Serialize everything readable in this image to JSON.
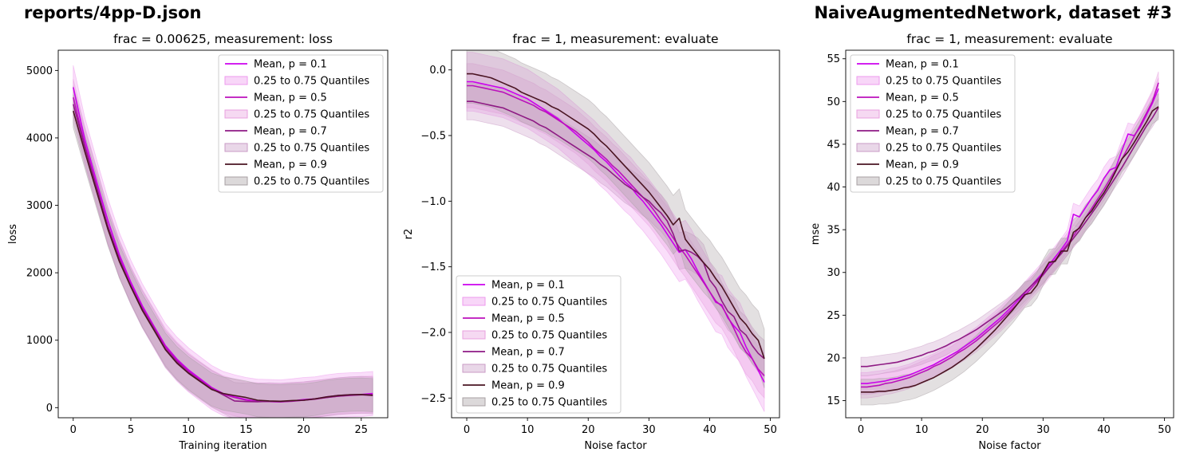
{
  "figure": {
    "left_header": "reports/4pp-D.json",
    "right_header": "NaiveAugmentedNetwork, dataset #3"
  },
  "series_styles": [
    {
      "p": "0.1",
      "line_color": "#cc00ee",
      "fill_color": "#ee99ee"
    },
    {
      "p": "0.5",
      "line_color": "#bb11bb",
      "fill_color": "#e8a0df"
    },
    {
      "p": "0.7",
      "line_color": "#8e1a84",
      "fill_color": "#c99bc6"
    },
    {
      "p": "0.9",
      "line_color": "#4a1422",
      "fill_color": "#a7a0a3"
    }
  ],
  "chart_data": [
    {
      "type": "line",
      "title": "frac = 0.00625, measurement: loss",
      "xlabel": "Training iteration",
      "ylabel": "loss",
      "xlim": [
        -1.3,
        27.3
      ],
      "ylim": [
        -150,
        5300
      ],
      "xticks": [
        0,
        5,
        10,
        15,
        20,
        25
      ],
      "yticks": [
        0,
        1000,
        2000,
        3000,
        4000,
        5000
      ],
      "legend_position": "upper right",
      "legend": [
        "Mean, p = 0.1",
        "0.25 to 0.75 Quantiles",
        "Mean, p = 0.5",
        "0.25 to 0.75 Quantiles",
        "Mean, p = 0.7",
        "0.25 to 0.75 Quantiles",
        "Mean, p = 0.9",
        "0.25 to 0.75 Quantiles"
      ],
      "x": [
        0,
        1,
        2,
        3,
        4,
        5,
        6,
        7,
        8,
        9,
        10,
        11,
        12,
        13,
        14,
        15,
        16,
        17,
        18,
        19,
        20,
        21,
        22,
        23,
        24,
        25,
        26
      ],
      "series": [
        {
          "name": "Mean, p = 0.1",
          "band_halfwidth": 0.06,
          "values": [
            4750,
            3980,
            3370,
            2780,
            2270,
            1860,
            1510,
            1210,
            920,
            720,
            560,
            430,
            300,
            210,
            160,
            120,
            95,
            90,
            85,
            100,
            120,
            130,
            160,
            180,
            190,
            195,
            210
          ]
        },
        {
          "name": "Mean, p = 0.5",
          "band_halfwidth": 0.05,
          "values": [
            4600,
            3900,
            3300,
            2700,
            2220,
            1820,
            1480,
            1190,
            900,
            700,
            540,
            410,
            290,
            200,
            150,
            110,
            95,
            90,
            85,
            95,
            110,
            125,
            150,
            170,
            180,
            190,
            195
          ]
        },
        {
          "name": "Mean, p = 0.7",
          "band_halfwidth": 0.05,
          "values": [
            4500,
            3870,
            3280,
            2690,
            2200,
            1800,
            1460,
            1170,
            870,
            680,
            520,
            400,
            280,
            190,
            100,
            90,
            88,
            95,
            90,
            100,
            110,
            130,
            150,
            170,
            185,
            190,
            180
          ]
        },
        {
          "name": "Mean, p = 0.9",
          "band_halfwidth": 0.045,
          "values": [
            4400,
            3800,
            3220,
            2650,
            2170,
            1790,
            1440,
            1150,
            860,
            660,
            510,
            390,
            270,
            210,
            180,
            150,
            110,
            100,
            95,
            105,
            110,
            130,
            160,
            180,
            190,
            195,
            185
          ]
        }
      ]
    },
    {
      "type": "line",
      "title": "frac = 1, measurement: evaluate",
      "xlabel": "Noise factor",
      "ylabel": "r2",
      "xlim": [
        -2.5,
        51.5
      ],
      "ylim": [
        -2.65,
        0.15
      ],
      "xticks": [
        0,
        10,
        20,
        30,
        40,
        50
      ],
      "yticks": [
        0.0,
        -0.5,
        -1.0,
        -1.5,
        -2.0,
        -2.5
      ],
      "ytick_labels": [
        "0.0",
        "−0.5",
        "−1.0",
        "−1.5",
        "−2.0",
        "−2.5"
      ],
      "legend_position": "lower left",
      "legend": [
        "Mean, p = 0.1",
        "0.25 to 0.75 Quantiles",
        "Mean, p = 0.5",
        "0.25 to 0.75 Quantiles",
        "Mean, p = 0.7",
        "0.25 to 0.75 Quantiles",
        "Mean, p = 0.9",
        "0.25 to 0.75 Quantiles"
      ],
      "x": [
        0,
        1,
        2,
        3,
        4,
        5,
        6,
        7,
        8,
        9,
        10,
        11,
        12,
        13,
        14,
        15,
        16,
        17,
        18,
        19,
        20,
        21,
        22,
        23,
        24,
        25,
        26,
        27,
        28,
        29,
        30,
        31,
        32,
        33,
        34,
        35,
        36,
        37,
        38,
        39,
        40,
        41,
        42,
        43,
        44,
        45,
        46,
        47,
        48,
        49
      ],
      "series": [
        {
          "name": "Mean, p = 0.1",
          "band_halfwidth": 0.08,
          "values": [
            -0.09,
            -0.09,
            -0.1,
            -0.11,
            -0.12,
            -0.13,
            -0.14,
            -0.16,
            -0.18,
            -0.2,
            -0.22,
            -0.25,
            -0.28,
            -0.31,
            -0.34,
            -0.37,
            -0.41,
            -0.45,
            -0.49,
            -0.53,
            -0.57,
            -0.61,
            -0.66,
            -0.7,
            -0.75,
            -0.8,
            -0.85,
            -0.89,
            -0.95,
            -1.0,
            -1.06,
            -1.12,
            -1.18,
            -1.25,
            -1.32,
            -1.39,
            -1.37,
            -1.44,
            -1.53,
            -1.61,
            -1.69,
            -1.77,
            -1.79,
            -1.89,
            -1.95,
            -2.0,
            -2.11,
            -2.2,
            -2.29,
            -2.38
          ]
        },
        {
          "name": "Mean, p = 0.5",
          "band_halfwidth": 0.06,
          "values": [
            -0.12,
            -0.12,
            -0.13,
            -0.14,
            -0.15,
            -0.16,
            -0.17,
            -0.19,
            -0.21,
            -0.23,
            -0.25,
            -0.27,
            -0.3,
            -0.32,
            -0.35,
            -0.38,
            -0.41,
            -0.44,
            -0.47,
            -0.51,
            -0.55,
            -0.6,
            -0.64,
            -0.68,
            -0.73,
            -0.77,
            -0.82,
            -0.87,
            -0.92,
            -0.97,
            -1.02,
            -1.08,
            -1.15,
            -1.21,
            -1.28,
            -1.35,
            -1.41,
            -1.48,
            -1.55,
            -1.62,
            -1.69,
            -1.76,
            -1.8,
            -1.88,
            -1.97,
            -2.07,
            -2.15,
            -2.2,
            -2.28,
            -2.33
          ]
        },
        {
          "name": "Mean, p = 0.7",
          "band_halfwidth": 0.05,
          "values": [
            -0.24,
            -0.24,
            -0.25,
            -0.26,
            -0.27,
            -0.28,
            -0.29,
            -0.31,
            -0.33,
            -0.35,
            -0.37,
            -0.39,
            -0.42,
            -0.44,
            -0.47,
            -0.5,
            -0.53,
            -0.56,
            -0.59,
            -0.62,
            -0.65,
            -0.68,
            -0.72,
            -0.75,
            -0.79,
            -0.83,
            -0.87,
            -0.9,
            -0.93,
            -0.97,
            -1.0,
            -1.05,
            -1.09,
            -1.15,
            -1.25,
            -1.38,
            -1.37,
            -1.39,
            -1.42,
            -1.47,
            -1.6,
            -1.66,
            -1.76,
            -1.84,
            -1.88,
            -1.98,
            -2.02,
            -2.1,
            -2.16,
            -2.2
          ]
        },
        {
          "name": "Mean, p = 0.9",
          "band_halfwidth": 0.08,
          "values": [
            -0.03,
            -0.03,
            -0.04,
            -0.05,
            -0.06,
            -0.08,
            -0.1,
            -0.12,
            -0.14,
            -0.17,
            -0.19,
            -0.21,
            -0.23,
            -0.25,
            -0.28,
            -0.3,
            -0.33,
            -0.36,
            -0.39,
            -0.42,
            -0.45,
            -0.49,
            -0.54,
            -0.58,
            -0.63,
            -0.68,
            -0.73,
            -0.78,
            -0.83,
            -0.88,
            -0.93,
            -0.99,
            -1.05,
            -1.11,
            -1.18,
            -1.13,
            -1.29,
            -1.35,
            -1.41,
            -1.47,
            -1.52,
            -1.59,
            -1.65,
            -1.73,
            -1.81,
            -1.89,
            -1.94,
            -2.01,
            -2.06,
            -2.2
          ]
        }
      ]
    },
    {
      "type": "line",
      "title": "frac = 1, measurement: evaluate",
      "xlabel": "Noise factor",
      "ylabel": "mse",
      "xlim": [
        -2.5,
        51.5
      ],
      "ylim": [
        13,
        56
      ],
      "xticks": [
        0,
        10,
        20,
        30,
        40,
        50
      ],
      "yticks": [
        15,
        20,
        25,
        30,
        35,
        40,
        45,
        50,
        55
      ],
      "legend_position": "upper left",
      "legend": [
        "Mean, p = 0.1",
        "0.25 to 0.75 Quantiles",
        "Mean, p = 0.5",
        "0.25 to 0.75 Quantiles",
        "Mean, p = 0.7",
        "0.25 to 0.75 Quantiles",
        "Mean, p = 0.9",
        "0.25 to 0.75 Quantiles"
      ],
      "x": [
        0,
        1,
        2,
        3,
        4,
        5,
        6,
        7,
        8,
        9,
        10,
        11,
        12,
        13,
        14,
        15,
        16,
        17,
        18,
        19,
        20,
        21,
        22,
        23,
        24,
        25,
        26,
        27,
        28,
        29,
        30,
        31,
        32,
        33,
        34,
        35,
        36,
        37,
        38,
        39,
        40,
        41,
        42,
        43,
        44,
        45,
        46,
        47,
        48,
        49
      ],
      "series": [
        {
          "name": "Mean, p = 0.1",
          "band_halfwidth": 0.03,
          "values": [
            17.0,
            17.0,
            17.1,
            17.2,
            17.3,
            17.5,
            17.6,
            17.8,
            18.0,
            18.3,
            18.6,
            18.9,
            19.2,
            19.6,
            20.0,
            20.4,
            20.8,
            21.3,
            21.8,
            22.3,
            22.9,
            23.5,
            24.1,
            24.7,
            25.4,
            26.1,
            26.8,
            27.6,
            28.4,
            29.2,
            30.0,
            30.9,
            31.8,
            32.7,
            33.7,
            36.8,
            36.5,
            37.6,
            38.7,
            39.6,
            41.0,
            42.0,
            42.3,
            44.3,
            46.2,
            46.0,
            47.0,
            48.4,
            49.8,
            51.5
          ]
        },
        {
          "name": "Mean, p = 0.5",
          "band_halfwidth": 0.03,
          "values": [
            16.6,
            16.6,
            16.7,
            16.8,
            17.0,
            17.1,
            17.3,
            17.5,
            17.7,
            18.0,
            18.3,
            18.6,
            19.0,
            19.3,
            19.7,
            20.1,
            20.6,
            21.0,
            21.5,
            22.0,
            22.6,
            23.2,
            23.8,
            24.4,
            25.1,
            25.8,
            26.5,
            27.3,
            28.1,
            28.9,
            29.7,
            30.6,
            31.5,
            32.4,
            33.3,
            34.3,
            35.3,
            36.4,
            37.5,
            38.6,
            39.7,
            40.9,
            42.1,
            43.3,
            44.6,
            45.9,
            47.2,
            48.6,
            50.0,
            52.2
          ]
        },
        {
          "name": "Mean, p = 0.7",
          "band_halfwidth": 0.025,
          "values": [
            19.0,
            19.0,
            19.1,
            19.2,
            19.3,
            19.4,
            19.5,
            19.7,
            19.9,
            20.1,
            20.3,
            20.6,
            20.8,
            21.1,
            21.4,
            21.8,
            22.1,
            22.5,
            22.9,
            23.3,
            23.8,
            24.3,
            24.8,
            25.3,
            25.8,
            26.4,
            27.0,
            27.7,
            28.4,
            29.1,
            29.8,
            30.6,
            31.4,
            32.2,
            33.1,
            34.0,
            34.9,
            35.9,
            36.9,
            37.9,
            39.0,
            40.1,
            41.2,
            42.3,
            43.5,
            44.7,
            45.9,
            47.1,
            48.1,
            49.3
          ]
        },
        {
          "name": "Mean, p = 0.9",
          "band_halfwidth": 0.035,
          "values": [
            16.0,
            16.0,
            16.0,
            16.1,
            16.1,
            16.2,
            16.3,
            16.5,
            16.6,
            16.8,
            17.1,
            17.4,
            17.7,
            18.1,
            18.5,
            18.9,
            19.4,
            19.9,
            20.5,
            21.1,
            21.8,
            22.5,
            23.2,
            24.0,
            24.8,
            25.6,
            26.5,
            27.4,
            27.6,
            28.5,
            30.0,
            31.2,
            31.3,
            32.5,
            32.5,
            34.7,
            35.2,
            36.4,
            37.2,
            38.3,
            39.3,
            40.5,
            41.9,
            43.3,
            44.1,
            45.2,
            46.4,
            47.6,
            48.9,
            49.4
          ]
        }
      ]
    }
  ]
}
